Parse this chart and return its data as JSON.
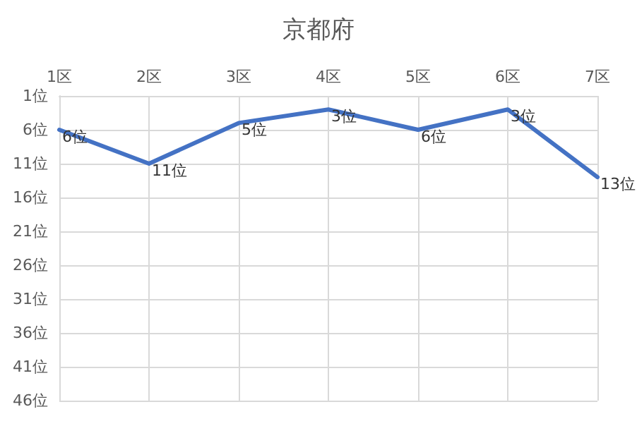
{
  "chart_data": {
    "type": "line",
    "title": "京都府",
    "categories": [
      "1区",
      "2区",
      "3区",
      "4区",
      "5区",
      "6区",
      "7区"
    ],
    "series": [
      {
        "color": "#4472c4",
        "values": [
          6,
          11,
          5,
          3,
          6,
          3,
          13
        ],
        "value_labels": [
          "6位",
          "11位",
          "5位",
          "3位",
          "6位",
          "3位",
          "13位"
        ]
      }
    ],
    "ylim": [
      46,
      1
    ],
    "yticks": [
      {
        "value": 1,
        "label": "1位"
      },
      {
        "value": 6,
        "label": "6位"
      },
      {
        "value": 11,
        "label": "11位"
      },
      {
        "value": 16,
        "label": "16位"
      },
      {
        "value": 21,
        "label": "21位"
      },
      {
        "value": 26,
        "label": "26位"
      },
      {
        "value": 31,
        "label": "31位"
      },
      {
        "value": 36,
        "label": "36位"
      },
      {
        "value": 41,
        "label": "41位"
      },
      {
        "value": 46,
        "label": "46位"
      }
    ],
    "grid": true,
    "marker": "none",
    "line_style": "solid"
  }
}
